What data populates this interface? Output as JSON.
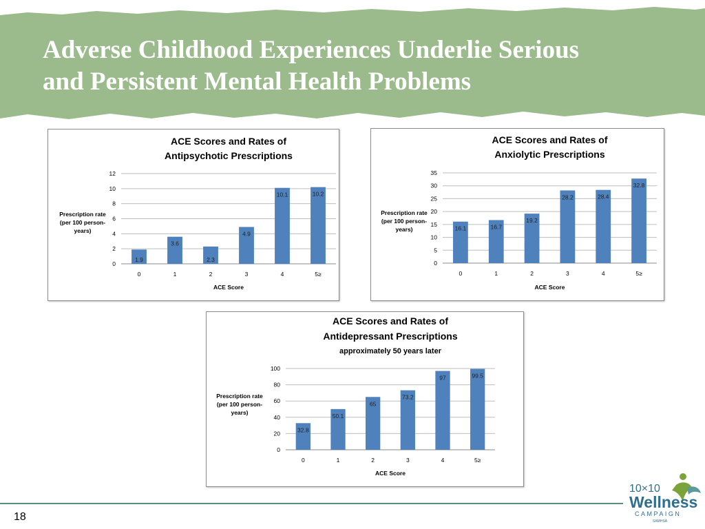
{
  "slide": {
    "title_line1": "Adverse Childhood Experiences Underlie Serious",
    "title_line2": "and Persistent Mental Health Problems",
    "page_number": "18",
    "colors": {
      "banner": "#9cbb8c",
      "bar": "#4f81bd",
      "footer_rule": "#5b8a7a"
    }
  },
  "logo": {
    "text_main": "10×10",
    "text_wellness": "Wellness",
    "text_campaign": "CAMPAIGN",
    "text_small": "SAMHSA",
    "icon": "figure-icon"
  },
  "chart_data": [
    {
      "type": "bar",
      "title": "ACE Scores and Rates of",
      "title2": "Antipsychotic Prescriptions",
      "subtitle": "",
      "xlabel": "ACE Score",
      "ylabel": [
        "Prescription rate",
        "(per 100 person-",
        "years)"
      ],
      "categories": [
        "0",
        "1",
        "2",
        "3",
        "4",
        "5≥"
      ],
      "values": [
        1.9,
        3.6,
        2.3,
        4.9,
        10.1,
        10.2
      ],
      "ylim": [
        0,
        12
      ],
      "yticks": [
        0,
        2,
        4,
        6,
        8,
        10,
        12
      ],
      "grid": true
    },
    {
      "type": "bar",
      "title": "ACE Scores and Rates of",
      "title2": "Anxiolytic Prescriptions",
      "subtitle": "",
      "xlabel": "ACE Score",
      "ylabel": [
        "Prescription rate",
        "(per 100 person-",
        "years)"
      ],
      "categories": [
        "0",
        "1",
        "2",
        "3",
        "4",
        "5≥"
      ],
      "values": [
        16.1,
        16.7,
        19.2,
        28.2,
        28.4,
        32.8
      ],
      "ylim": [
        0,
        35
      ],
      "yticks": [
        0,
        5,
        10,
        15,
        20,
        25,
        30,
        35
      ],
      "grid": true
    },
    {
      "type": "bar",
      "title": "ACE Scores and Rates of",
      "title2": "Antidepressant Prescriptions",
      "subtitle": "approximately 50 years later",
      "xlabel": "ACE Score",
      "ylabel": [
        "Prescription rate",
        "(per 100 person-",
        "years)"
      ],
      "categories": [
        "0",
        "1",
        "2",
        "3",
        "4",
        "5≥"
      ],
      "values": [
        32.8,
        50.1,
        65,
        73.2,
        97,
        99.5
      ],
      "ylim": [
        0,
        100
      ],
      "yticks": [
        0,
        20,
        40,
        60,
        80,
        100
      ],
      "grid": true
    }
  ]
}
